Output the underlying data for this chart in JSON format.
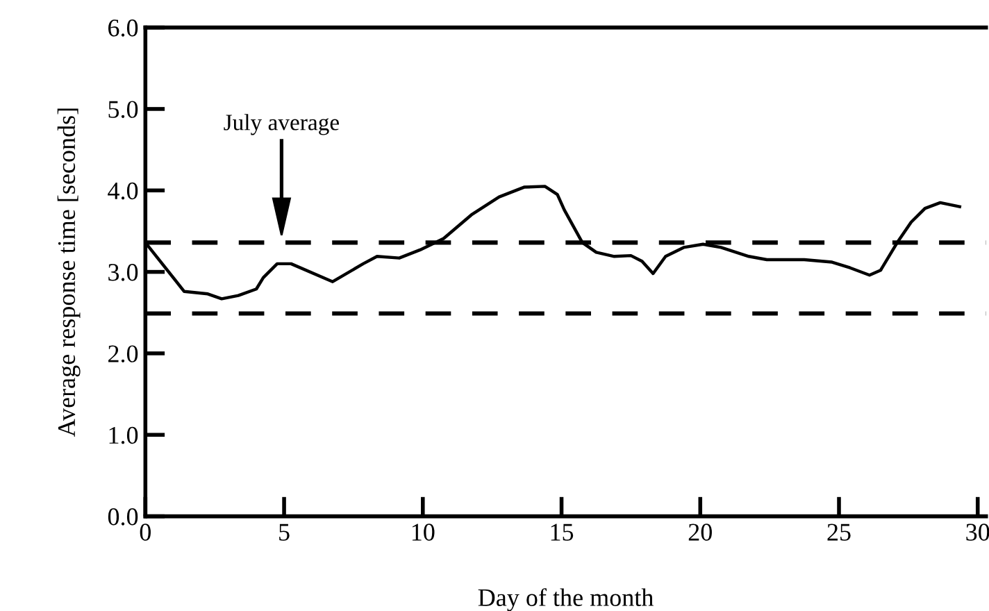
{
  "chart_data": {
    "type": "line",
    "xlabel": "Day of the month",
    "ylabel": "Average response time [seconds]",
    "x": [
      0,
      1.4,
      2.25,
      2.75,
      3.35,
      4.0,
      4.25,
      4.75,
      5.25,
      6.75,
      7.85,
      8.35,
      9.15,
      9.9,
      10.75,
      11.75,
      12.75,
      13.65,
      14.4,
      14.85,
      15.1,
      15.75,
      16.25,
      16.9,
      17.5,
      17.9,
      18.3,
      18.75,
      19.4,
      20.1,
      20.75,
      21.75,
      22.4,
      23.75,
      24.75,
      25.4,
      26.1,
      26.5,
      27.1,
      27.6,
      28.1,
      28.65,
      29.35
    ],
    "series": [
      {
        "color": "#000000",
        "values": [
          3.36,
          2.76,
          2.73,
          2.67,
          2.71,
          2.79,
          2.93,
          3.1,
          3.1,
          2.88,
          3.1,
          3.19,
          3.17,
          3.27,
          3.41,
          3.7,
          3.92,
          4.04,
          4.05,
          3.95,
          3.76,
          3.36,
          3.24,
          3.19,
          3.2,
          3.13,
          2.98,
          3.19,
          3.3,
          3.34,
          3.3,
          3.19,
          3.15,
          3.15,
          3.12,
          3.05,
          2.96,
          3.02,
          3.36,
          3.61,
          3.78,
          3.85,
          3.8
        ]
      }
    ],
    "xlim": [
      0,
      30.3
    ],
    "xticks": [
      0,
      5,
      10,
      15,
      20,
      25,
      30
    ],
    "ylim": [
      0,
      6
    ],
    "yticks": [
      {
        "value": 0,
        "label": "0.0"
      },
      {
        "value": 1,
        "label": "1.0"
      },
      {
        "value": 2,
        "label": "2.0"
      },
      {
        "value": 3,
        "label": "3.0"
      },
      {
        "value": 4,
        "label": "4.0"
      },
      {
        "value": 5,
        "label": "5.0"
      },
      {
        "value": 6,
        "label": "6.0"
      }
    ],
    "ref_lines": [
      {
        "axis": "y",
        "value": 3.36,
        "color": "#000000",
        "line_style": "dashed"
      },
      {
        "axis": "y",
        "value": 2.49,
        "color": "#000000",
        "line_style": "dashed"
      }
    ],
    "annotations": [
      "July average"
    ],
    "grid": false,
    "legend": false,
    "marker": "none",
    "line_style": "solid"
  }
}
